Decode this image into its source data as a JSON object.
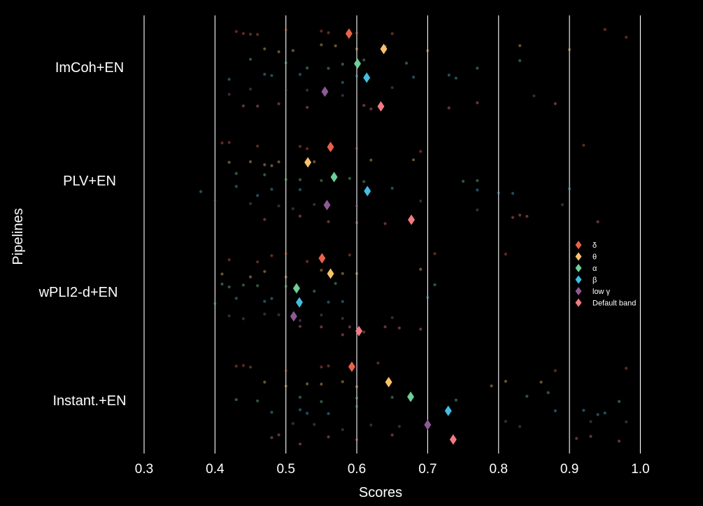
{
  "chart_data": {
    "type": "scatter",
    "title": "",
    "xlabel": "Scores",
    "ylabel": "Pipelines",
    "xlim": [
      0.25,
      1.04
    ],
    "xticks": [
      0.3,
      0.4,
      0.5,
      0.6,
      0.7,
      0.8,
      0.9,
      1.0
    ],
    "xtick_labels": [
      "0.3",
      "0.4",
      "0.5",
      "0.6",
      "0.7",
      "0.8",
      "0.9",
      "1.0"
    ],
    "grid": "vertical",
    "legend_position": "right",
    "categories": [
      "ImCoh+EN",
      "PLV+EN",
      "wPLI2-d+EN",
      "Instant.+EN"
    ],
    "series": [
      {
        "name": "δ",
        "color": "#e8624a",
        "values": [
          0.589,
          0.563,
          0.551,
          0.593
        ]
      },
      {
        "name": "θ",
        "color": "#f6c36b",
        "values": [
          0.638,
          0.531,
          0.563,
          0.645
        ]
      },
      {
        "name": "α",
        "color": "#6ecf98",
        "values": [
          0.601,
          0.568,
          0.515,
          0.676
        ]
      },
      {
        "name": "β",
        "color": "#45bde0",
        "values": [
          0.614,
          0.615,
          0.519,
          0.729
        ]
      },
      {
        "name": "low γ",
        "color": "#8c5a94",
        "values": [
          0.555,
          0.558,
          0.511,
          0.7
        ]
      },
      {
        "name": "Default band",
        "color": "#f27a82",
        "values": [
          0.634,
          0.677,
          0.603,
          0.736
        ]
      }
    ],
    "individual_scores": {
      "ImCoh+EN": [
        [
          0.44,
          0.45,
          0.5,
          0.55,
          0.6,
          0.65,
          0.95,
          0.98,
          0.46,
          0.56,
          0.43
        ],
        [
          0.49,
          0.51,
          0.55,
          0.6,
          0.64,
          0.7,
          0.83,
          0.9,
          0.47,
          0.57
        ],
        [
          0.45,
          0.53,
          0.56,
          0.61,
          0.67,
          0.77,
          0.83,
          0.5,
          0.58
        ],
        [
          0.42,
          0.48,
          0.52,
          0.58,
          0.68,
          0.73,
          0.74,
          0.6,
          0.47
        ],
        [
          0.42,
          0.5,
          0.53,
          0.65,
          0.85,
          0.45,
          0.58
        ],
        [
          0.46,
          0.49,
          0.53,
          0.61,
          0.62,
          0.73,
          0.77,
          0.88,
          0.44
        ]
      ],
      "PLV+EN": [
        [
          0.41,
          0.42,
          0.46,
          0.53,
          0.6,
          0.69,
          0.92,
          0.52
        ],
        [
          0.42,
          0.45,
          0.48,
          0.49,
          0.54,
          0.62,
          0.68,
          0.47
        ],
        [
          0.43,
          0.47,
          0.52,
          0.55,
          0.61,
          0.75,
          0.77,
          0.5,
          0.59
        ],
        [
          0.38,
          0.43,
          0.48,
          0.52,
          0.65,
          0.77,
          0.8,
          0.82,
          0.9,
          0.46
        ],
        [
          0.4,
          0.45,
          0.49,
          0.54,
          0.69,
          0.77,
          0.89,
          0.51,
          0.6
        ],
        [
          0.47,
          0.52,
          0.6,
          0.64,
          0.82,
          0.83,
          0.84,
          0.94,
          0.56
        ]
      ],
      "wPLI2-d+EN": [
        [
          0.42,
          0.46,
          0.48,
          0.53,
          0.59,
          0.71,
          0.81,
          0.5
        ],
        [
          0.41,
          0.45,
          0.5,
          0.55,
          0.6,
          0.69,
          0.47,
          0.58
        ],
        [
          0.41,
          0.42,
          0.46,
          0.5,
          0.54,
          0.71,
          0.44,
          0.57
        ],
        [
          0.4,
          0.43,
          0.47,
          0.48,
          0.56,
          0.58,
          0.7,
          0.52
        ],
        [
          0.42,
          0.44,
          0.49,
          0.52,
          0.58,
          0.65,
          0.47,
          0.55
        ],
        [
          0.55,
          0.58,
          0.59,
          0.64,
          0.66,
          0.69,
          0.52,
          0.61
        ]
      ],
      "Instant.+EN": [
        [
          0.43,
          0.44,
          0.45,
          0.5,
          0.55,
          0.56,
          0.63,
          0.88,
          0.98
        ],
        [
          0.47,
          0.5,
          0.53,
          0.58,
          0.6,
          0.79,
          0.81,
          0.86,
          0.55
        ],
        [
          0.43,
          0.46,
          0.52,
          0.55,
          0.6,
          0.74,
          0.84,
          0.87,
          0.97,
          0.65
        ],
        [
          0.48,
          0.52,
          0.53,
          0.56,
          0.88,
          0.92,
          0.94,
          0.95,
          0.6
        ],
        [
          0.51,
          0.54,
          0.58,
          0.66,
          0.81,
          0.83,
          0.93,
          0.98,
          0.62
        ],
        [
          0.48,
          0.49,
          0.52,
          0.6,
          0.65,
          0.91,
          0.93,
          0.97,
          0.56
        ]
      ]
    }
  }
}
